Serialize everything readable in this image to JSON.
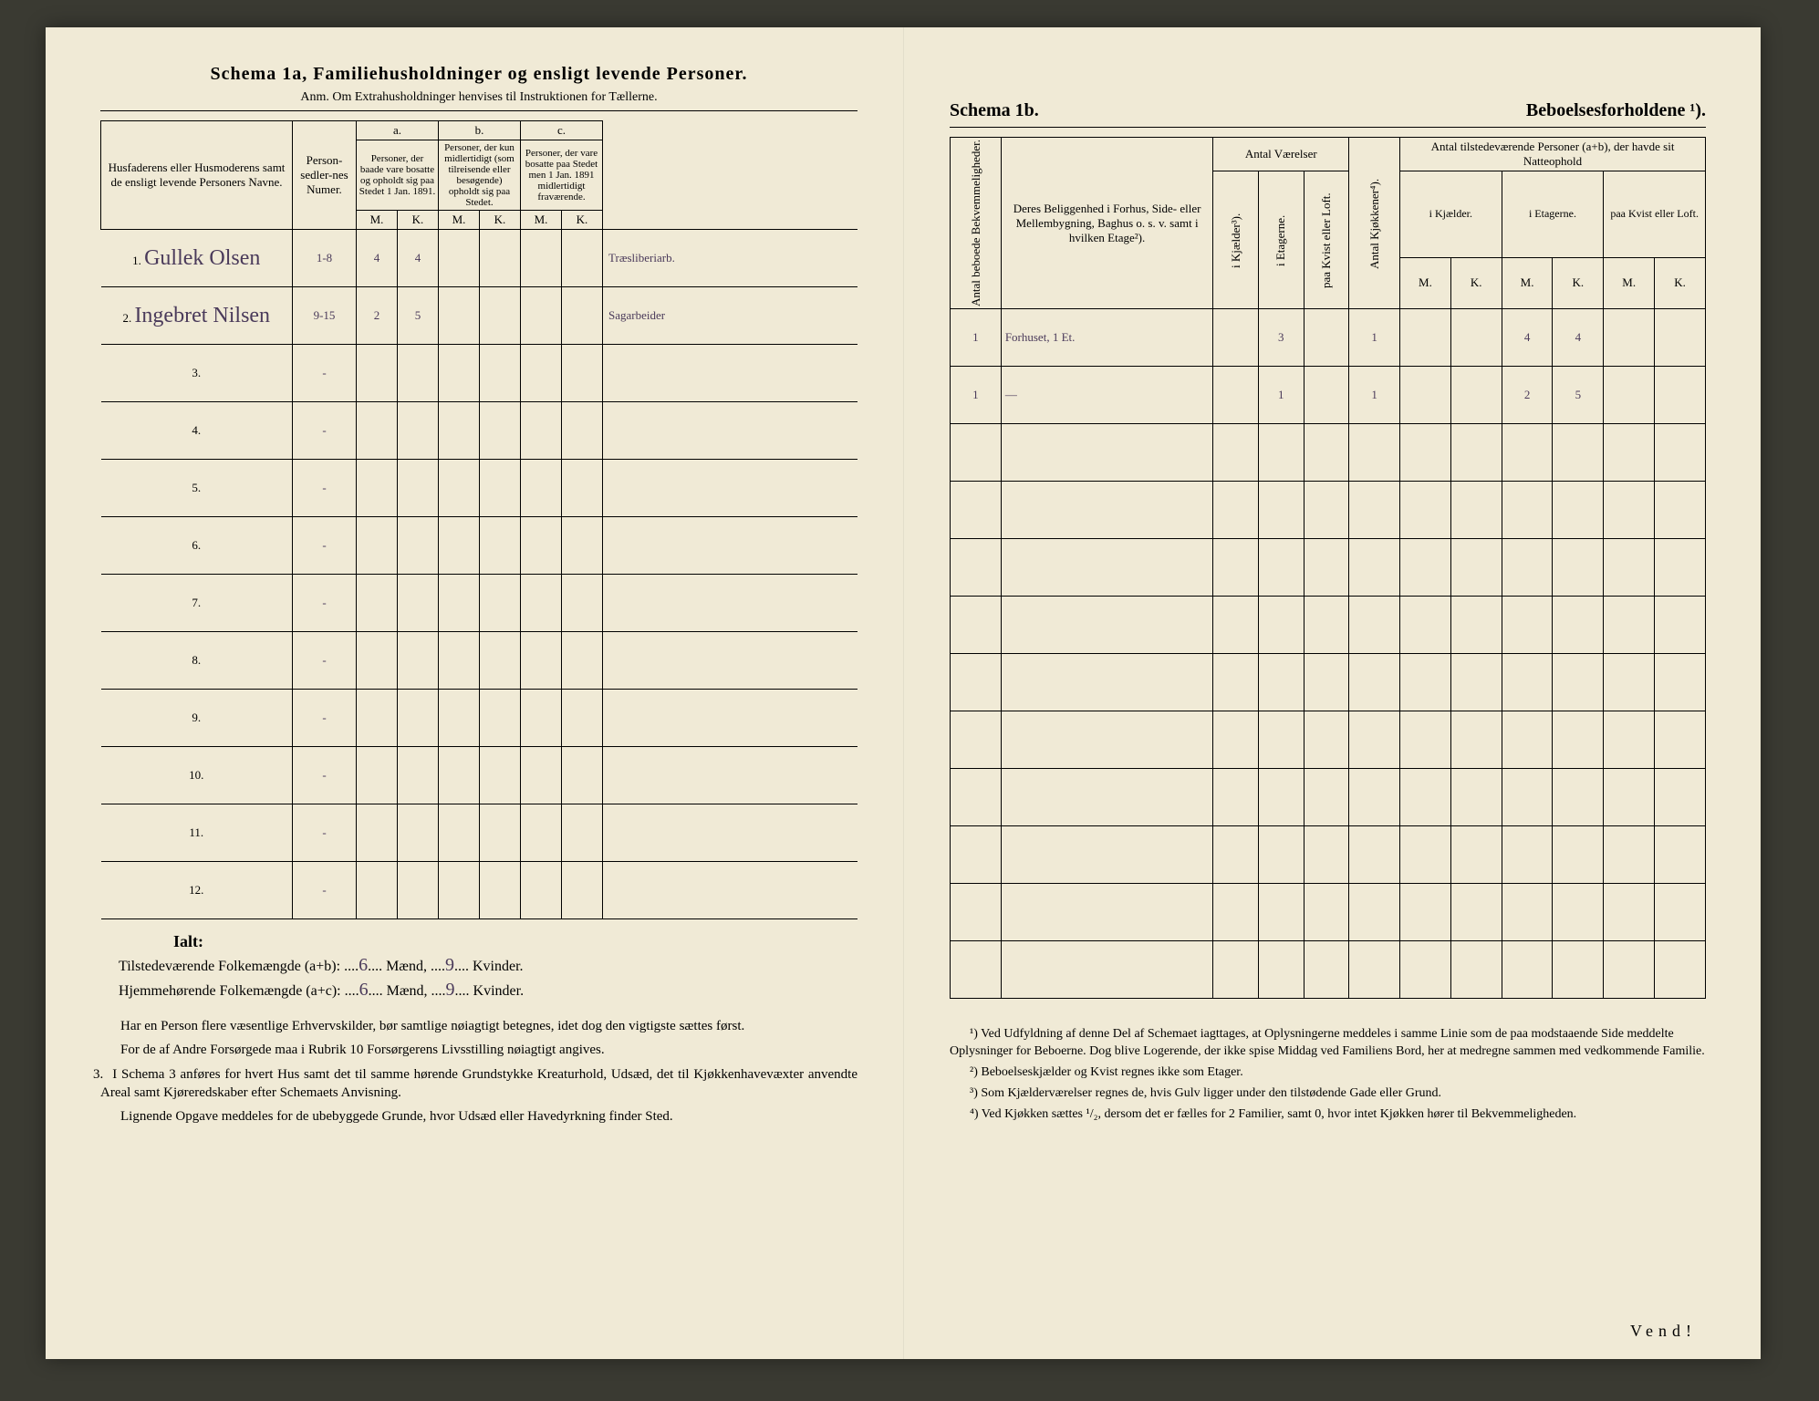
{
  "left": {
    "title": "Schema 1a,   Familiehusholdninger og ensligt levende Personer.",
    "anm": "Anm.  Om Extrahusholdninger henvises til Instruktionen for Tællerne.",
    "head": {
      "names": "Husfaderens eller Husmoderens samt de ensligt levende Personers Navne.",
      "person_num": "Person-sedler-nes Numer.",
      "a_label": "a.",
      "a_text": "Personer, der baade vare bosatte og opholdt sig paa Stedet 1 Jan. 1891.",
      "b_label": "b.",
      "b_text": "Personer, der kun midlertidigt (som tilreisende eller besøgende) opholdt sig paa Stedet.",
      "c_label": "c.",
      "c_text": "Personer, der vare bosatte paa Stedet men 1 Jan. 1891 midlertidigt fraværende.",
      "m": "M.",
      "k": "K."
    },
    "rows": [
      {
        "n": "1.",
        "name": "Gullek Olsen",
        "num": "1-8",
        "aM": "4",
        "aK": "4",
        "bM": "",
        "bK": "",
        "cM": "",
        "cK": "",
        "occ": "Træsliberiarb."
      },
      {
        "n": "2.",
        "name": "Ingebret Nilsen",
        "num": "9-15",
        "aM": "2",
        "aK": "5",
        "bM": "",
        "bK": "",
        "cM": "",
        "cK": "",
        "occ": "Sagarbeider"
      },
      {
        "n": "3."
      },
      {
        "n": "4."
      },
      {
        "n": "5."
      },
      {
        "n": "6."
      },
      {
        "n": "7."
      },
      {
        "n": "8."
      },
      {
        "n": "9."
      },
      {
        "n": "10."
      },
      {
        "n": "11."
      },
      {
        "n": "12."
      }
    ],
    "ialt": "Ialt:",
    "tilst_label": "Tilstedeværende Folkemængde (a+b):",
    "tilst_m": "6",
    "tilst_k": "9",
    "hjem_label": "Hjemmehørende Folkemængde (a+c):",
    "hjem_m": "6",
    "hjem_k": "9",
    "maend": "Mænd,",
    "kvinder": "Kvinder.",
    "para1": "Har en Person flere væsentlige Erhvervskilder, bør samtlige nøiagtigt betegnes, idet dog den vigtigste sættes først.",
    "para2": "For de af Andre Forsørgede maa i Rubrik 10 Forsørgerens Livsstilling nøiagtigt angives.",
    "para3_num": "3.",
    "para3": "I Schema 3 anføres for hvert Hus samt det til samme hørende Grundstykke Kreaturhold, Udsæd, det til Kjøkkenhavevæxter anvendte Areal samt Kjøreredskaber efter Schemaets Anvisning.",
    "para4": "Lignende Opgave meddeles for de ubebyggede Grunde, hvor Udsæd eller Havedyrkning finder Sted."
  },
  "right": {
    "title1": "Schema 1b.",
    "title2": "Beboelsesforholdene ¹).",
    "head": {
      "bekv": "Antal beboede Bekvemmeligheder.",
      "belig": "Deres Beliggenhed i Forhus, Side- eller Mellembygning, Baghus o. s. v. samt i hvilken Etage²).",
      "vaer": "Antal Værelser",
      "kjael": "i Kjælder³).",
      "etag": "i Etagerne.",
      "kvist": "paa Kvist eller Loft.",
      "kjok": "Antal Kjøkkener⁴).",
      "tilst": "Antal tilstedeværende Personer (a+b), der havde sit Natteophold",
      "ikjael": "i Kjælder.",
      "ietag": "i Etagerne.",
      "paak": "paa Kvist eller Loft.",
      "m": "M.",
      "k": "K."
    },
    "rows": [
      {
        "bekv": "1",
        "belig": "Forhuset, 1 Et.",
        "kj": "",
        "et": "3",
        "kv": "",
        "kjok": "1",
        "km": "",
        "kk": "",
        "em": "4",
        "ek": "4",
        "lm": "",
        "lk": ""
      },
      {
        "bekv": "1",
        "belig": "   —",
        "kj": "",
        "et": "1",
        "kv": "",
        "kjok": "1",
        "km": "",
        "kk": "",
        "em": "2",
        "ek": "5",
        "lm": "",
        "lk": ""
      }
    ],
    "fn1": "¹) Ved Udfyldning af denne Del af Schemaet iagttages, at Oplysningerne meddeles i samme Linie som de paa modstaaende Side meddelte Oplysninger for Beboerne. Dog blive Logerende, der ikke spise Middag ved Familiens Bord, her at medregne sammen med vedkommende Familie.",
    "fn2": "²) Beboelseskjælder og Kvist regnes ikke som Etager.",
    "fn3": "³) Som Kjælderværelser regnes de, hvis Gulv ligger under den tilstødende Gade eller Grund.",
    "fn4": "⁴) Ved Kjøkken sættes ¹/₂, dersom det er fælles for 2 Familier, samt 0, hvor intet Kjøkken hører til Bekvemmeligheden.",
    "vend": "Vend!"
  }
}
